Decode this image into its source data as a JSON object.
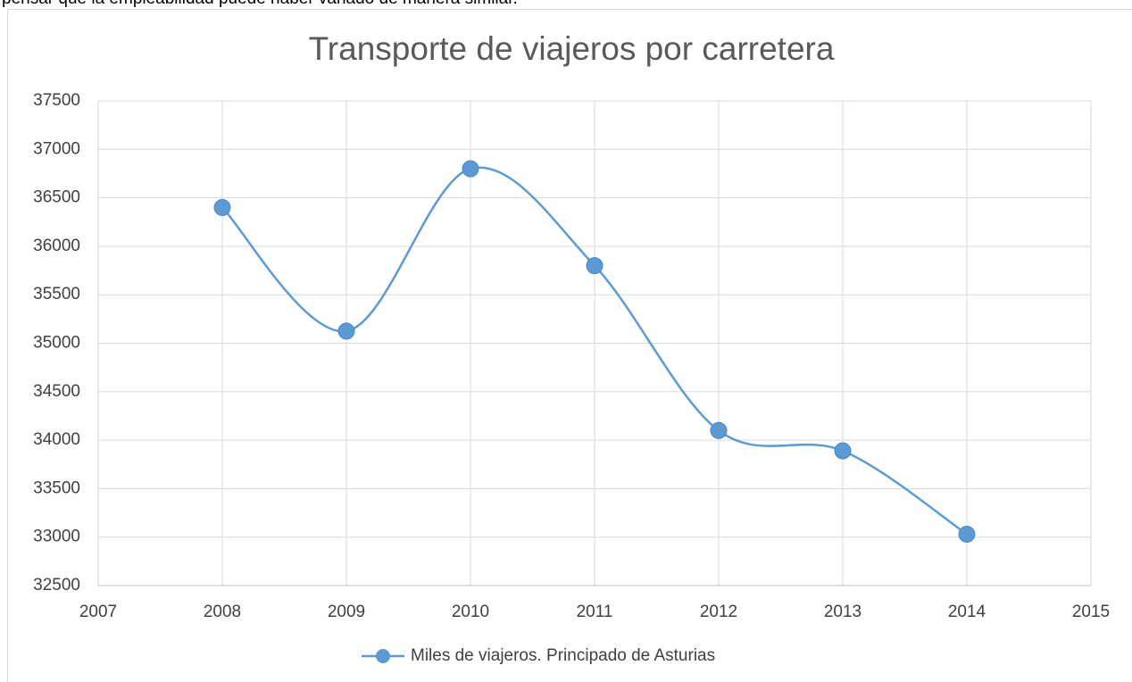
{
  "text": "pensar que la empleabilidad puede haber variado de manera similar.",
  "chart_data": {
    "type": "line",
    "title": "Transporte de viajeros por carretera",
    "x": [
      2008,
      2009,
      2010,
      2011,
      2012,
      2013,
      2014
    ],
    "series": [
      {
        "name": "Miles de viajeros. Principado de Asturias",
        "color": "#5b9bd5",
        "values": [
          36400,
          35125,
          36800,
          35800,
          34100,
          33890,
          33030
        ]
      }
    ],
    "xlim": [
      2007,
      2015
    ],
    "xticks": [
      2007,
      2008,
      2009,
      2010,
      2011,
      2012,
      2013,
      2014,
      2015
    ],
    "ylim": [
      32500,
      37500
    ],
    "yticks": [
      32500,
      33000,
      33500,
      34000,
      34500,
      35000,
      35500,
      36000,
      36500,
      37000,
      37500
    ],
    "grid": true,
    "smooth": true,
    "legend": "bottom"
  }
}
